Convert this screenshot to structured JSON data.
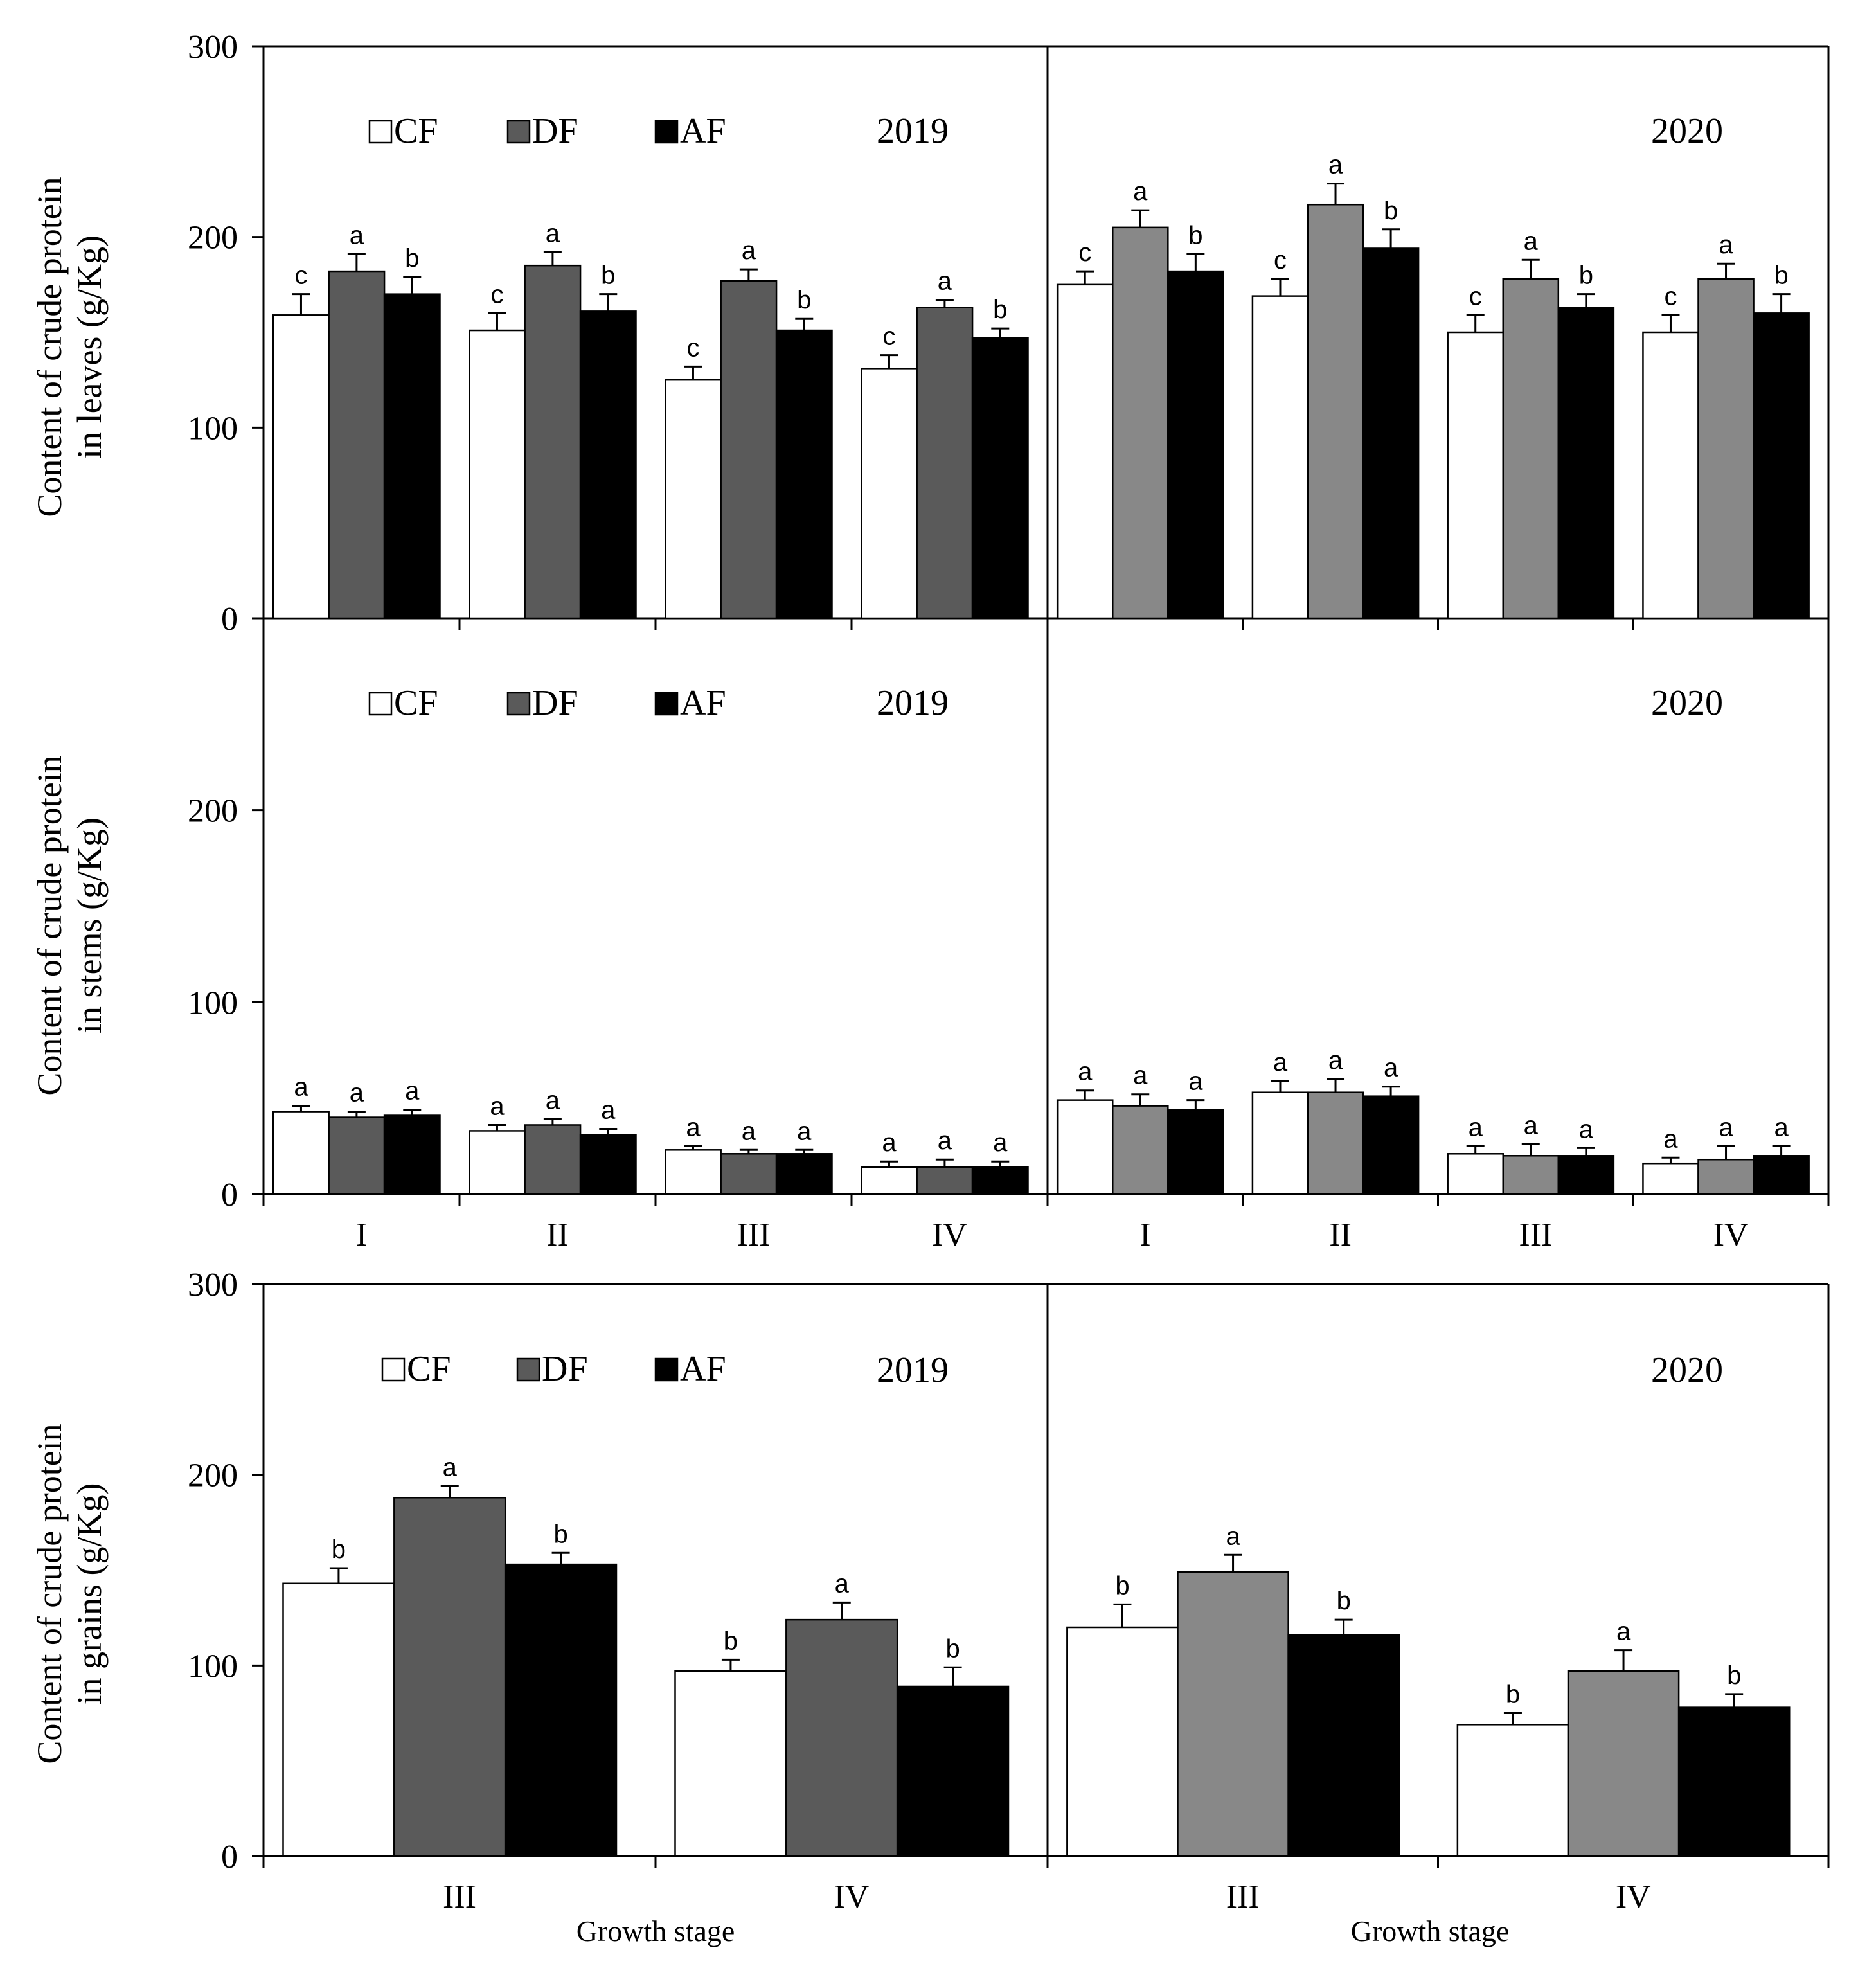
{
  "figure": {
    "colors": {
      "CF": "#ffffff",
      "DF_2019": "#5a5a5a",
      "DF_2020": "#888888",
      "AF": "#000000",
      "axis": "#000000"
    },
    "legend_labels": [
      "CF",
      "DF",
      "AF"
    ],
    "growth_stage_label_left": "Growth  stage",
    "growth_stage_label_right": "Growth stage"
  },
  "chart_data": [
    {
      "id": "leaves",
      "type": "bar",
      "ylabel_lines": [
        "Content of crude protein",
        "in leaves (g/Kg)"
      ],
      "ylim": [
        0,
        300
      ],
      "yticks": [
        "0",
        "100",
        "200",
        "300"
      ],
      "ytick_values": [
        0,
        100,
        200,
        300
      ],
      "show_top_tick": true,
      "show_categories": false,
      "panels": [
        {
          "year": "2019",
          "show_legend": true,
          "categories": [
            "I",
            "II",
            "III",
            "IV"
          ],
          "series": [
            {
              "name": "CF",
              "values": [
                159,
                151,
                125,
                131
              ],
              "errors": [
                11,
                9,
                7,
                7
              ],
              "sig": [
                "c",
                "c",
                "c",
                "c"
              ]
            },
            {
              "name": "DF",
              "values": [
                182,
                185,
                177,
                163
              ],
              "errors": [
                9,
                7,
                6,
                4
              ],
              "sig": [
                "a",
                "a",
                "a",
                "a"
              ]
            },
            {
              "name": "AF",
              "values": [
                170,
                161,
                151,
                147
              ],
              "errors": [
                9,
                9,
                6,
                5
              ],
              "sig": [
                "b",
                "b",
                "b",
                "b"
              ]
            }
          ]
        },
        {
          "year": "2020",
          "show_legend": false,
          "categories": [
            "I",
            "II",
            "III",
            "IV"
          ],
          "series": [
            {
              "name": "CF",
              "values": [
                175,
                169,
                150,
                150
              ],
              "errors": [
                7,
                9,
                9,
                9
              ],
              "sig": [
                "c",
                "c",
                "c",
                "c"
              ]
            },
            {
              "name": "DF",
              "values": [
                205,
                217,
                178,
                178
              ],
              "errors": [
                9,
                11,
                10,
                8
              ],
              "sig": [
                "a",
                "a",
                "a",
                "a"
              ]
            },
            {
              "name": "AF",
              "values": [
                182,
                194,
                163,
                160
              ],
              "errors": [
                9,
                10,
                7,
                10
              ],
              "sig": [
                "b",
                "b",
                "b",
                "b"
              ]
            }
          ]
        }
      ]
    },
    {
      "id": "stems",
      "type": "bar",
      "ylabel_lines": [
        "Content of crude protein",
        "in stems (g/Kg)"
      ],
      "ylim": [
        0,
        300
      ],
      "yticks": [
        "0",
        "100",
        "200"
      ],
      "ytick_values": [
        0,
        100,
        200
      ],
      "show_top_tick": false,
      "show_categories": true,
      "panels": [
        {
          "year": "2019",
          "show_legend": true,
          "categories": [
            "I",
            "II",
            "III",
            "IV"
          ],
          "series": [
            {
              "name": "CF",
              "values": [
                43,
                33,
                23,
                14
              ],
              "errors": [
                3,
                3,
                2,
                3
              ],
              "sig": [
                "a",
                "a",
                "a",
                "a"
              ]
            },
            {
              "name": "DF",
              "values": [
                40,
                36,
                21,
                14
              ],
              "errors": [
                3,
                3,
                2,
                4
              ],
              "sig": [
                "a",
                "a",
                "a",
                "a"
              ]
            },
            {
              "name": "AF",
              "values": [
                41,
                31,
                21,
                14
              ],
              "errors": [
                3,
                3,
                2,
                3
              ],
              "sig": [
                "a",
                "a",
                "a",
                "a"
              ]
            }
          ]
        },
        {
          "year": "2020",
          "show_legend": false,
          "categories": [
            "I",
            "II",
            "III",
            "IV"
          ],
          "series": [
            {
              "name": "CF",
              "values": [
                49,
                53,
                21,
                16
              ],
              "errors": [
                5,
                6,
                4,
                3
              ],
              "sig": [
                "a",
                "a",
                "a",
                "a"
              ]
            },
            {
              "name": "DF",
              "values": [
                46,
                53,
                20,
                18
              ],
              "errors": [
                6,
                7,
                6,
                7
              ],
              "sig": [
                "a",
                "a",
                "a",
                "a"
              ]
            },
            {
              "name": "AF",
              "values": [
                44,
                51,
                20,
                20
              ],
              "errors": [
                5,
                5,
                4,
                5
              ],
              "sig": [
                "a",
                "a",
                "a",
                "a"
              ]
            }
          ]
        }
      ]
    },
    {
      "id": "grains",
      "type": "bar",
      "ylabel_lines": [
        "Content of crude protein",
        "in grains (g/Kg)"
      ],
      "ylim": [
        0,
        300
      ],
      "yticks": [
        "0",
        "100",
        "200",
        "300"
      ],
      "ytick_values": [
        0,
        100,
        200,
        300
      ],
      "show_top_tick": true,
      "show_categories": true,
      "panels": [
        {
          "year": "2019",
          "show_legend": true,
          "categories": [
            "III",
            "IV"
          ],
          "series": [
            {
              "name": "CF",
              "values": [
                143,
                97
              ],
              "errors": [
                8,
                6
              ],
              "sig": [
                "b",
                "b"
              ]
            },
            {
              "name": "DF",
              "values": [
                188,
                124
              ],
              "errors": [
                6,
                9
              ],
              "sig": [
                "a",
                "a"
              ]
            },
            {
              "name": "AF",
              "values": [
                153,
                89
              ],
              "errors": [
                6,
                10
              ],
              "sig": [
                "b",
                "b"
              ]
            }
          ]
        },
        {
          "year": "2020",
          "show_legend": false,
          "categories": [
            "III",
            "IV"
          ],
          "series": [
            {
              "name": "CF",
              "values": [
                120,
                69
              ],
              "errors": [
                12,
                6
              ],
              "sig": [
                "b",
                "b"
              ]
            },
            {
              "name": "DF",
              "values": [
                149,
                97
              ],
              "errors": [
                9,
                11
              ],
              "sig": [
                "a",
                "a"
              ]
            },
            {
              "name": "AF",
              "values": [
                116,
                78
              ],
              "errors": [
                8,
                7
              ],
              "sig": [
                "b",
                "b"
              ]
            }
          ]
        }
      ]
    }
  ]
}
